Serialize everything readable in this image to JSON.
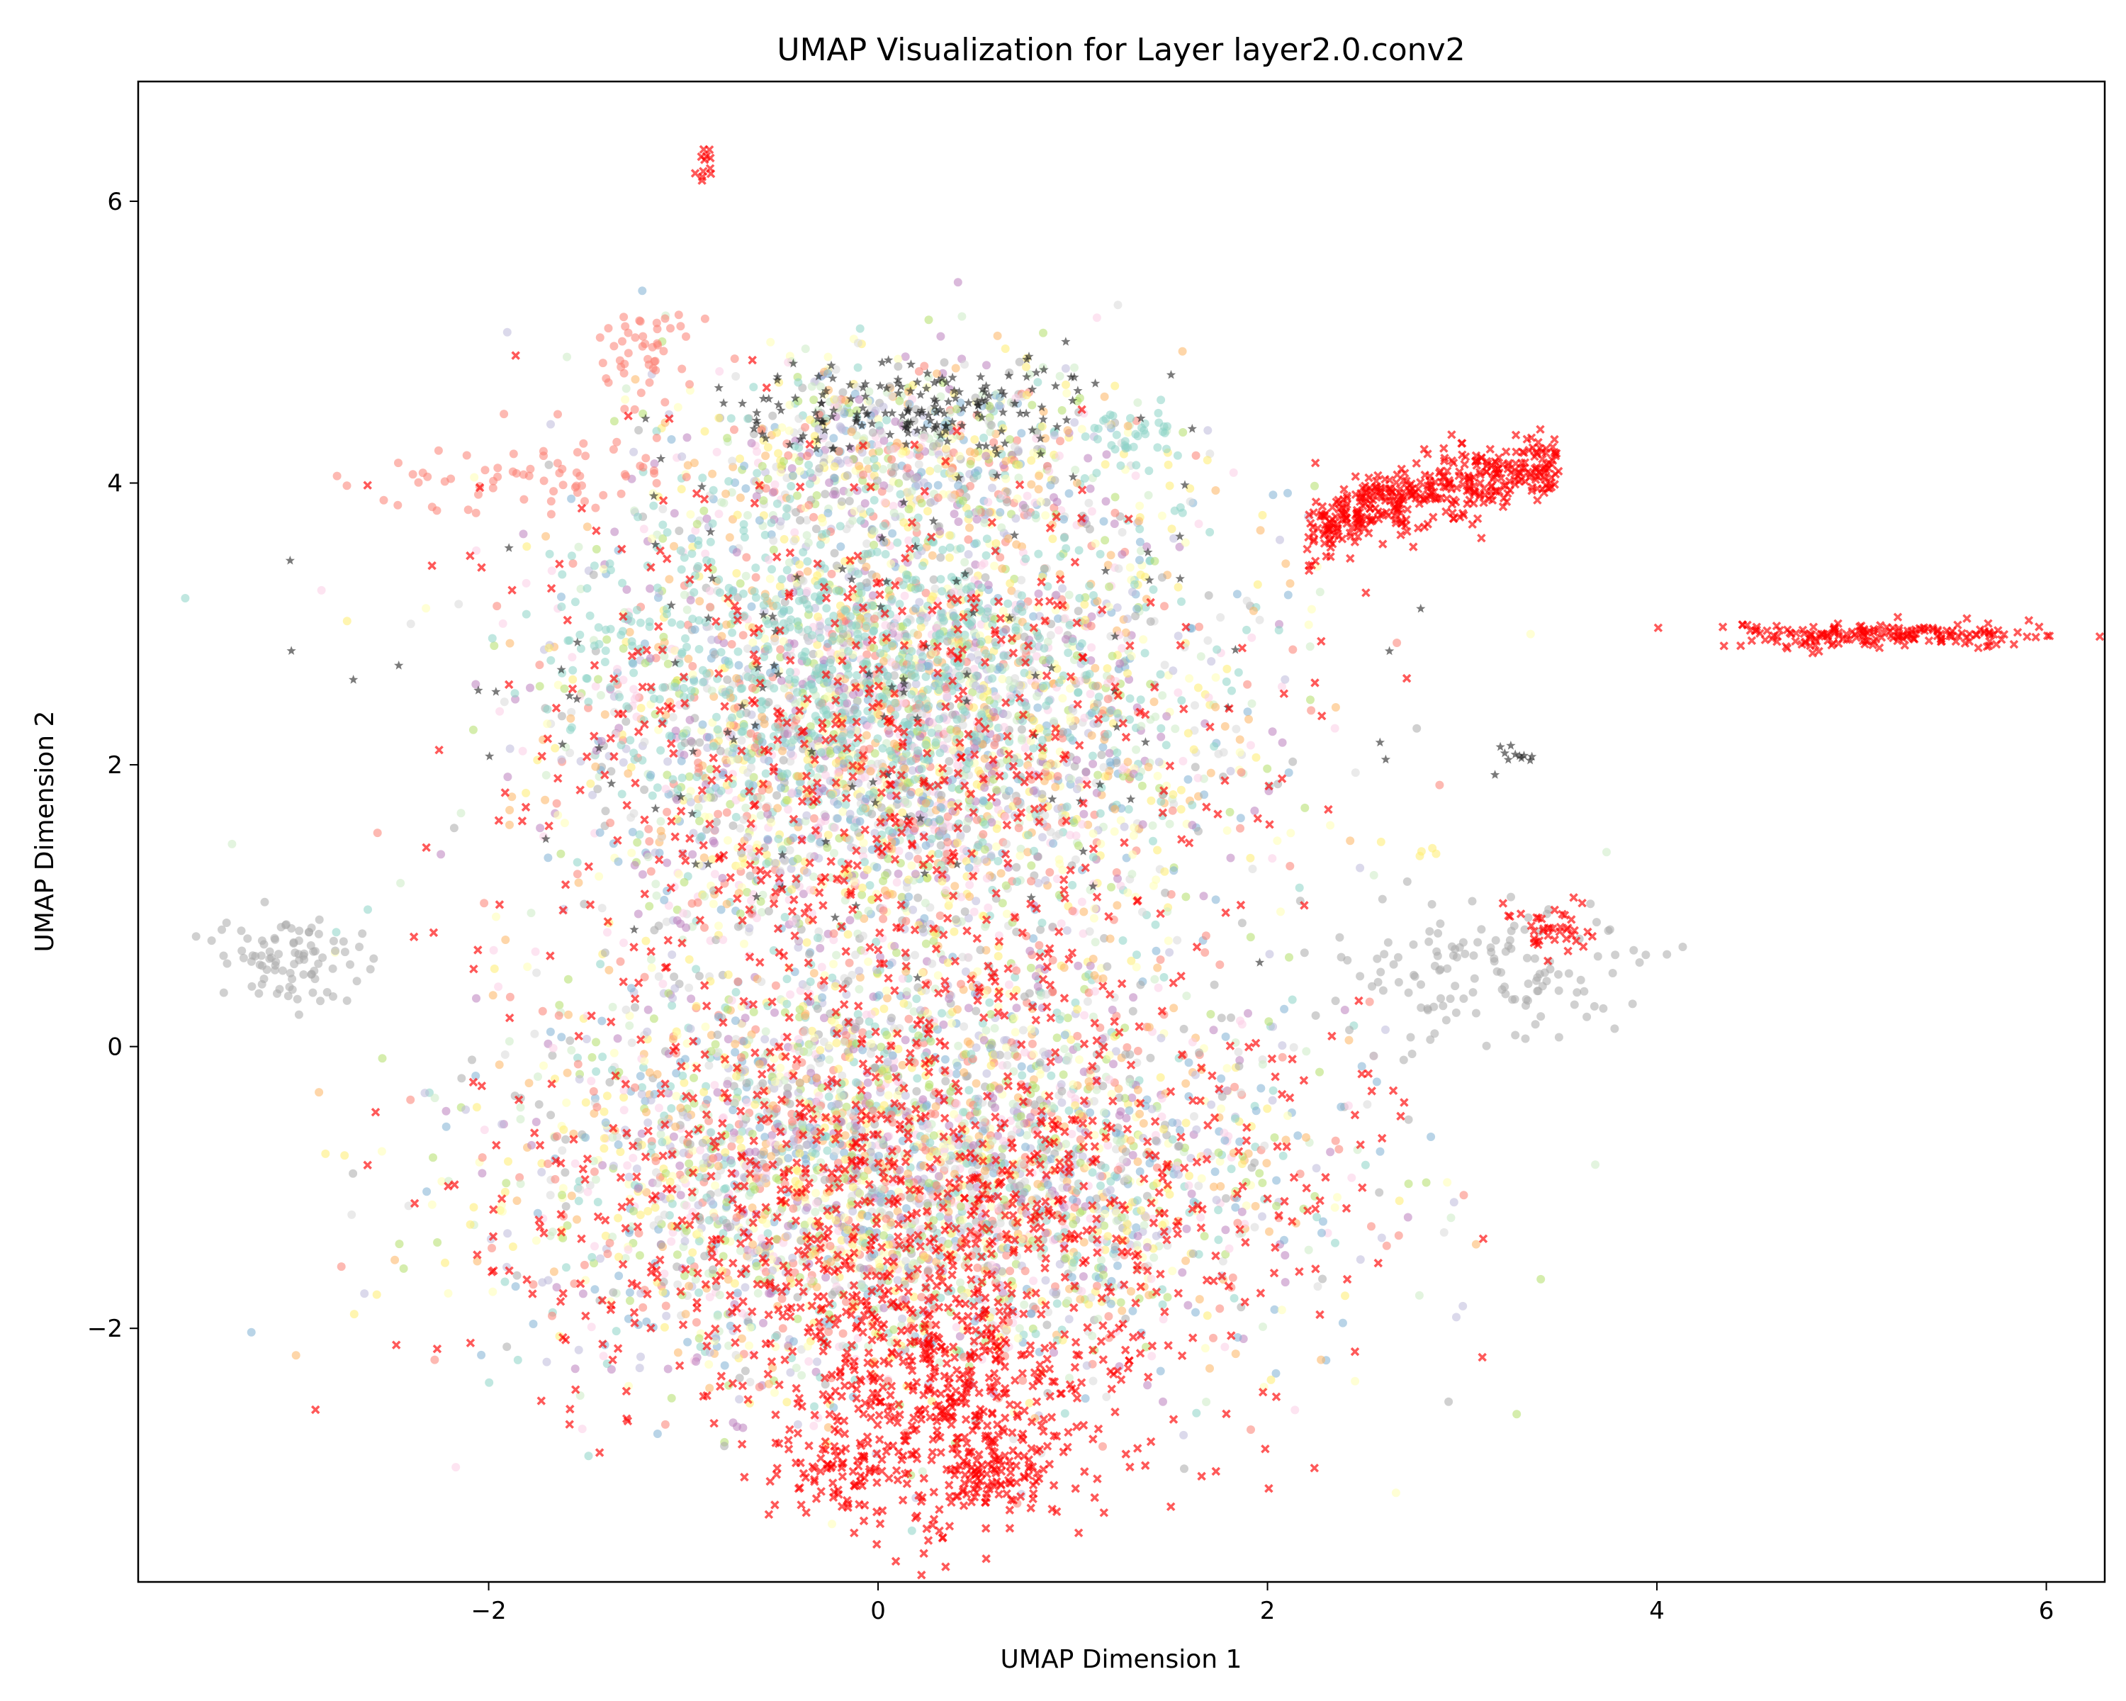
{
  "chart_data": {
    "type": "scatter",
    "title": "UMAP Visualization for Layer layer2.0.conv2",
    "xlabel": "UMAP Dimension 1",
    "ylabel": "UMAP Dimension 2",
    "xlim": [
      -3.8,
      6.3
    ],
    "ylim": [
      -3.8,
      6.85
    ],
    "xticks": [
      -2,
      0,
      2,
      4,
      6
    ],
    "yticks": [
      -2,
      0,
      2,
      4,
      6
    ],
    "xtick_labels": [
      "−2",
      "0",
      "2",
      "4",
      "6"
    ],
    "ytick_labels": [
      "−2",
      "0",
      "2",
      "4",
      "6"
    ],
    "grid": false,
    "legend": "none",
    "point_colors": [
      "#8dd3c7",
      "#ffffb3",
      "#bebada",
      "#fb8072",
      "#80b1d3",
      "#fdb462",
      "#b3de69",
      "#fccde5",
      "#d9d9d9",
      "#bc80bd",
      "#ccebc5",
      "#ffed6f",
      "#aaaaaa"
    ],
    "highlight_color": "#ff0000",
    "star_color": "#222222",
    "clusters": [
      {
        "name": "main-upper",
        "center": [
          0.1,
          2.2
        ],
        "spread": [
          0.85,
          0.9
        ],
        "count": 3200,
        "marker": "circle",
        "palette": "mixed"
      },
      {
        "name": "main-lower",
        "center": [
          0.1,
          -0.9
        ],
        "spread": [
          1.0,
          0.75
        ],
        "count": 3400,
        "marker": "circle",
        "palette": "mixed"
      },
      {
        "name": "top-cap",
        "center": [
          0.15,
          4.2
        ],
        "spread": [
          0.6,
          0.35
        ],
        "count": 700,
        "marker": "circle",
        "palette": "mixed"
      },
      {
        "name": "teal-core",
        "center": [
          -0.2,
          2.8
        ],
        "spread": [
          0.7,
          0.5
        ],
        "count": 500,
        "marker": "circle",
        "color": "#8dd3c7"
      },
      {
        "name": "top-stars",
        "center": [
          0.2,
          4.55
        ],
        "spread": [
          0.55,
          0.18
        ],
        "count": 160,
        "marker": "star",
        "color": "#222222"
      },
      {
        "name": "scattered-stars",
        "center": [
          -0.1,
          2.6
        ],
        "spread": [
          1.1,
          1.0
        ],
        "count": 120,
        "marker": "star",
        "color": "#222222"
      },
      {
        "name": "red-main-lower",
        "center": [
          0.2,
          -1.2
        ],
        "spread": [
          1.0,
          0.8
        ],
        "count": 900,
        "marker": "x",
        "color": "#ff0000"
      },
      {
        "name": "red-main-upper",
        "center": [
          0.0,
          1.8
        ],
        "spread": [
          0.9,
          1.1
        ],
        "count": 550,
        "marker": "x",
        "color": "#ff0000"
      },
      {
        "name": "red-bottom-tail",
        "center": [
          0.35,
          -2.6
        ],
        "spread": [
          0.35,
          0.45
        ],
        "count": 450,
        "marker": "x",
        "color": "#ff0000"
      },
      {
        "name": "red-bottom-left",
        "center": [
          -0.25,
          -3.05
        ],
        "spread": [
          0.15,
          0.1
        ],
        "count": 50,
        "marker": "x",
        "color": "#ff0000"
      },
      {
        "name": "red-bottom-right",
        "center": [
          0.65,
          -3.05
        ],
        "spread": [
          0.12,
          0.08
        ],
        "count": 40,
        "marker": "x",
        "color": "#ff0000"
      },
      {
        "name": "red-arc",
        "center": [
          2.9,
          3.95
        ],
        "spread": [
          0.55,
          0.15
        ],
        "count": 420,
        "marker": "x",
        "color": "#ff0000",
        "shape": "arc"
      },
      {
        "name": "red-right-band",
        "center": [
          5.2,
          2.92
        ],
        "spread": [
          0.45,
          0.05
        ],
        "count": 180,
        "marker": "x",
        "color": "#ff0000"
      },
      {
        "name": "red-right-cluster",
        "center": [
          3.45,
          0.82
        ],
        "spread": [
          0.12,
          0.08
        ],
        "count": 40,
        "marker": "x",
        "color": "#ff0000"
      },
      {
        "name": "red-top-dot",
        "center": [
          -0.9,
          6.28
        ],
        "spread": [
          0.04,
          0.05
        ],
        "count": 12,
        "marker": "x",
        "color": "#ff0000"
      },
      {
        "name": "orange-left-upper",
        "center": [
          -1.15,
          4.95
        ],
        "spread": [
          0.18,
          0.18
        ],
        "count": 45,
        "marker": "circle",
        "color": "#fb8072"
      },
      {
        "name": "orange-left",
        "center": [
          -1.8,
          4.05
        ],
        "spread": [
          0.35,
          0.18
        ],
        "count": 70,
        "marker": "circle",
        "color": "#fb8072"
      },
      {
        "name": "teal-right-top",
        "center": [
          1.3,
          4.3
        ],
        "spread": [
          0.15,
          0.1
        ],
        "count": 35,
        "marker": "circle",
        "color": "#8dd3c7"
      },
      {
        "name": "gray-left",
        "center": [
          -3.0,
          0.65
        ],
        "spread": [
          0.2,
          0.15
        ],
        "count": 90,
        "marker": "circle",
        "color": "#aaaaaa"
      },
      {
        "name": "gray-right",
        "center": [
          3.1,
          0.55
        ],
        "spread": [
          0.45,
          0.25
        ],
        "count": 140,
        "marker": "circle",
        "color": "#aaaaaa"
      },
      {
        "name": "star-right",
        "center": [
          3.27,
          2.07
        ],
        "spread": [
          0.04,
          0.03
        ],
        "count": 10,
        "marker": "star",
        "color": "#222222"
      },
      {
        "name": "yellow-right",
        "center": [
          2.8,
          1.38
        ],
        "spread": [
          0.02,
          0.02
        ],
        "count": 4,
        "marker": "circle",
        "color": "#ffed6f"
      }
    ]
  }
}
